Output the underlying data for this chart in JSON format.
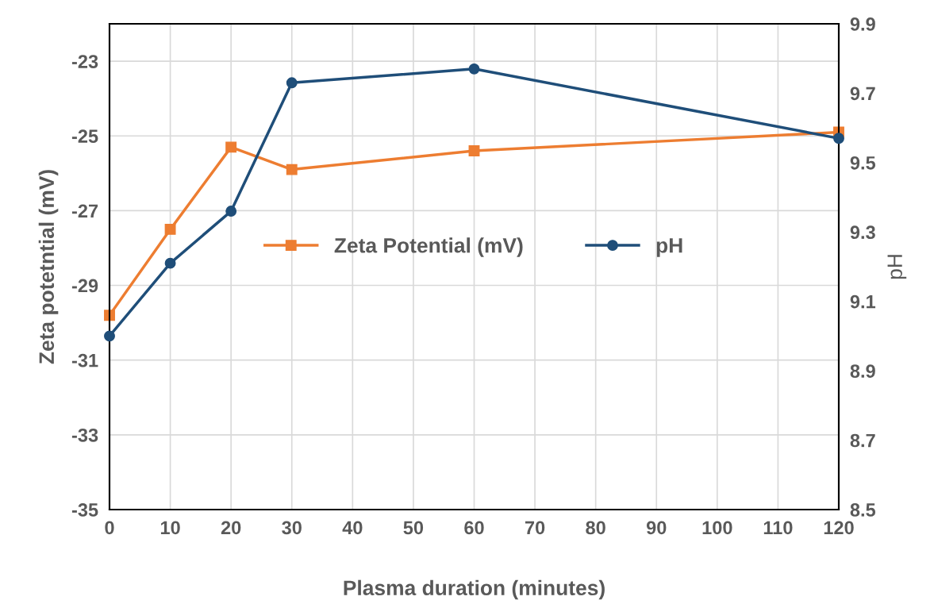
{
  "chart_data": {
    "type": "line",
    "xlabel": "Plasma duration (minutes)",
    "ylabel": "Zeta potetntial (mV)",
    "y2label": "pH",
    "x": [
      0,
      10,
      20,
      30,
      60,
      120
    ],
    "series": [
      {
        "name": "Zeta Potential (mV)",
        "color": "#ed7d31",
        "marker": "square",
        "values": [
          -29.8,
          -27.5,
          -25.3,
          -25.9,
          -25.4,
          -24.9
        ]
      },
      {
        "name": "pH",
        "color": "#1f4e79",
        "marker": "circle",
        "axis": "y2",
        "values": [
          9.0,
          9.21,
          9.36,
          9.73,
          9.77,
          9.57
        ]
      }
    ],
    "xlim": [
      0,
      120
    ],
    "xticks": [
      0,
      10,
      20,
      30,
      40,
      50,
      60,
      70,
      80,
      90,
      100,
      110,
      120
    ],
    "ylim": [
      -35,
      -22
    ],
    "yticks": [
      -35,
      -33,
      -31,
      -29,
      -27,
      -25,
      -23
    ],
    "y2lim": [
      8.5,
      9.9
    ],
    "y2ticks": [
      8.5,
      8.7,
      8.9,
      9.1,
      9.3,
      9.5,
      9.7,
      9.9
    ],
    "grid": true,
    "legend": "center",
    "line_style": "solid"
  }
}
